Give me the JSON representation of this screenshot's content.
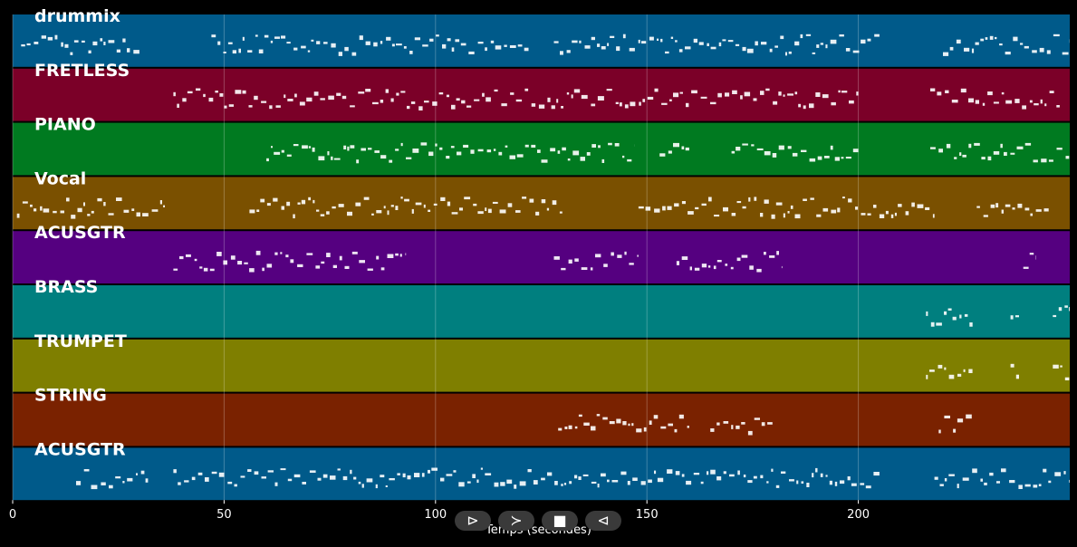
{
  "chart_data": {
    "type": "piano-roll",
    "xlabel": "Temps (secondes)",
    "xlim": [
      0,
      250
    ],
    "xticks": [
      0,
      50,
      100,
      150,
      200
    ],
    "grid": true,
    "tracks": [
      {
        "name": "drummix",
        "color": "#005a8a",
        "segments": [
          [
            2,
            30
          ],
          [
            47,
            52
          ],
          [
            52,
            122
          ],
          [
            128,
            205
          ],
          [
            220,
            250
          ]
        ]
      },
      {
        "name": "FRETLESS",
        "color": "#7b0028",
        "segments": [
          [
            38,
            200
          ],
          [
            217,
            248
          ]
        ]
      },
      {
        "name": "PIANO",
        "color": "#007a20",
        "segments": [
          [
            60,
            70
          ],
          [
            70,
            125
          ],
          [
            125,
            147
          ],
          [
            153,
            160
          ],
          [
            170,
            200
          ],
          [
            217,
            250
          ]
        ]
      },
      {
        "name": "Vocal",
        "color": "#7a5000",
        "segments": [
          [
            1,
            36
          ],
          [
            56,
            130
          ],
          [
            148,
            218
          ],
          [
            228,
            245
          ]
        ]
      },
      {
        "name": "ACUSGTR",
        "color": "#550080",
        "segments": [
          [
            38,
            93
          ],
          [
            128,
            148
          ],
          [
            157,
            182
          ],
          [
            239,
            242
          ]
        ]
      },
      {
        "name": "BRASS",
        "color": "#007f7f",
        "segments": [
          [
            216,
            227
          ],
          [
            236,
            238
          ],
          [
            246,
            250
          ]
        ]
      },
      {
        "name": "TRUMPET",
        "color": "#7f7f00",
        "segments": [
          [
            216,
            227
          ],
          [
            236,
            238
          ],
          [
            246,
            250
          ]
        ]
      },
      {
        "name": "STRING",
        "color": "#7a2200",
        "segments": [
          [
            129,
            160
          ],
          [
            165,
            180
          ],
          [
            219,
            227
          ]
        ]
      },
      {
        "name": "ACUSGTR",
        "color": "#005a8a",
        "segments": [
          [
            15,
            32
          ],
          [
            38,
            205
          ],
          [
            218,
            250
          ]
        ]
      }
    ]
  },
  "controls": {
    "play_label": "⊳",
    "forward_label": "≻",
    "stop_label": "■",
    "back_label": "⊲"
  }
}
